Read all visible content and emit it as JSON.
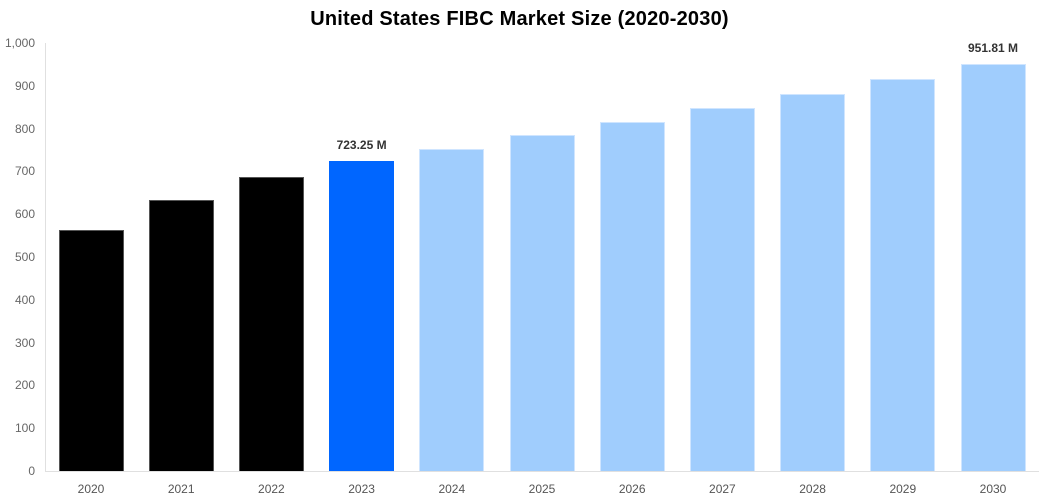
{
  "chart_data": {
    "type": "bar",
    "title": "United States FIBC Market Size (2020-2030)",
    "xlabel": "",
    "ylabel": "",
    "ylim": [
      0,
      1000
    ],
    "y_ticks": [
      "0",
      "100",
      "200",
      "300",
      "400",
      "500",
      "600",
      "700",
      "800",
      "900",
      "1,000"
    ],
    "grid": false,
    "legend": null,
    "categories": [
      "2020",
      "2021",
      "2022",
      "2023",
      "2024",
      "2025",
      "2026",
      "2027",
      "2028",
      "2029",
      "2030"
    ],
    "values": [
      564,
      633,
      687,
      723.25,
      752,
      785,
      815,
      848,
      880,
      915,
      951.81
    ],
    "bar_roles": [
      "historical",
      "historical",
      "historical",
      "base",
      "forecast",
      "forecast",
      "forecast",
      "forecast",
      "forecast",
      "forecast",
      "forecast"
    ],
    "colors": {
      "historical": "#000000",
      "base": "#0066ff",
      "forecast": "#a0cdfd"
    },
    "annotations": [
      {
        "category": "2023",
        "label": "723.25 M"
      },
      {
        "category": "2030",
        "label": "951.81 M"
      }
    ]
  }
}
